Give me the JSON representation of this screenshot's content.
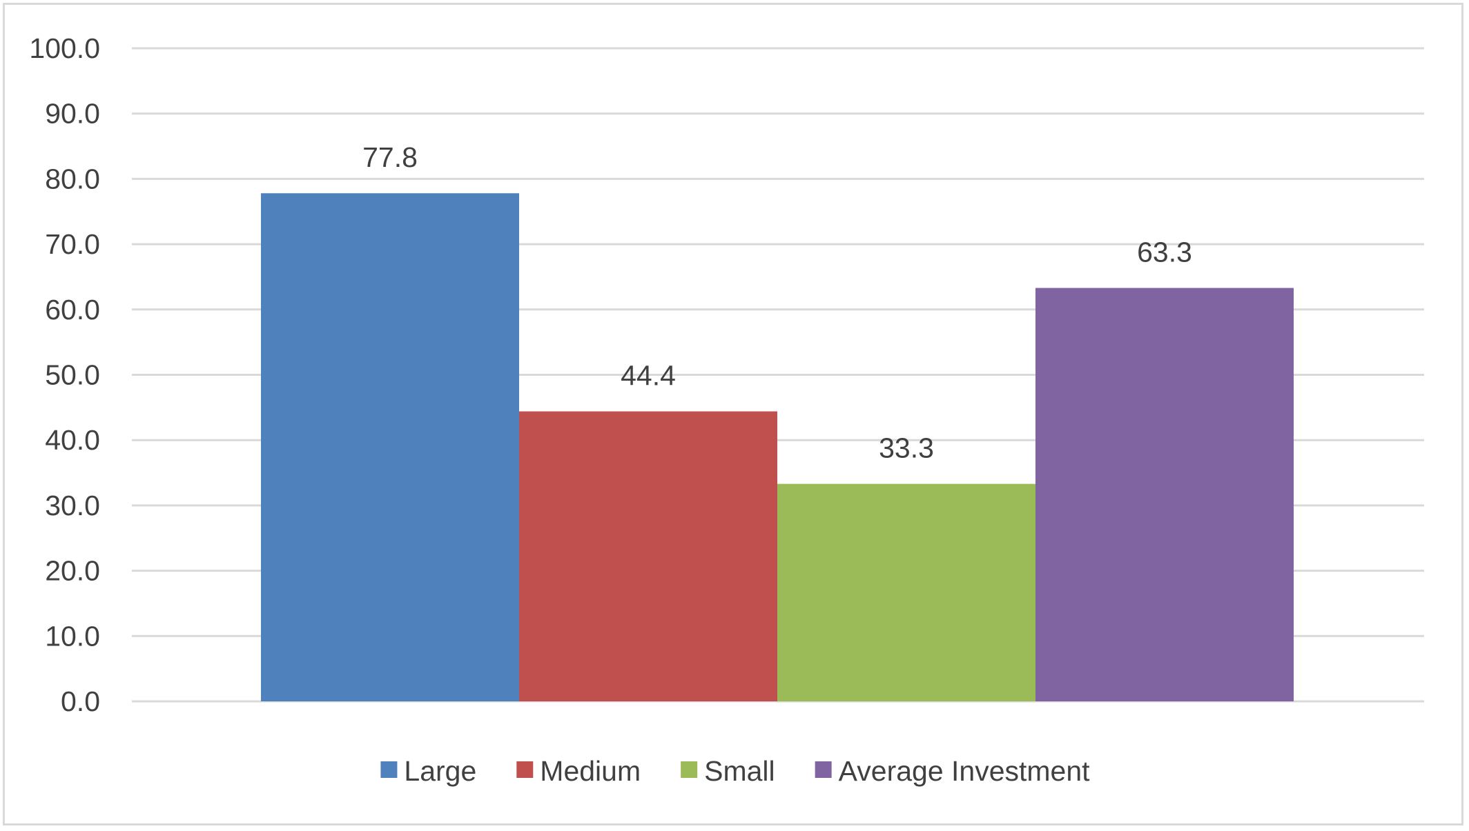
{
  "chart_data": {
    "type": "bar",
    "title": "",
    "xlabel": "",
    "ylabel": "",
    "ylim": [
      0,
      100
    ],
    "yticks": [
      "0.0",
      "10.0",
      "20.0",
      "30.0",
      "40.0",
      "50.0",
      "60.0",
      "70.0",
      "80.0",
      "90.0",
      "100.0"
    ],
    "grid": true,
    "legend_position": "bottom",
    "series": [
      {
        "name": "Large",
        "value": 77.8,
        "label": "77.8",
        "color": "#4F81BD"
      },
      {
        "name": "Medium",
        "value": 44.4,
        "label": "44.4",
        "color": "#C0504D"
      },
      {
        "name": "Small",
        "value": 33.3,
        "label": "33.3",
        "color": "#9BBB59"
      },
      {
        "name": "Average Investment",
        "value": 63.3,
        "label": "63.3",
        "color": "#8064A2"
      }
    ]
  }
}
